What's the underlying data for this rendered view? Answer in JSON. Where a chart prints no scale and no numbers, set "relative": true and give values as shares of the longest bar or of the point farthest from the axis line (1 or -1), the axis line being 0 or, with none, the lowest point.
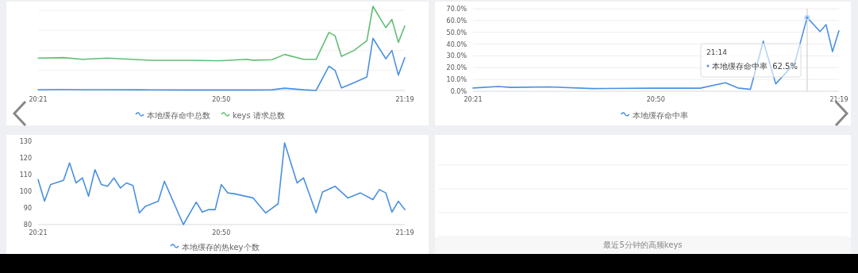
{
  "chart_data": [
    {
      "type": "line",
      "relative": true,
      "legend": "bottom",
      "grid": "y",
      "marker": "none",
      "line_style": "solid",
      "xlim": [
        20.35,
        21.317
      ],
      "xticks": [
        {
          "value": 20.35,
          "label": "20:21"
        },
        {
          "value": 20.833,
          "label": "20:50"
        },
        {
          "value": 21.317,
          "label": "21:19"
        }
      ],
      "x": [
        20.35,
        20.417,
        20.467,
        20.533,
        20.617,
        20.65,
        20.75,
        20.817,
        20.833,
        20.9,
        20.917,
        20.967,
        21.0,
        21.05,
        21.083,
        21.117,
        21.133,
        21.15,
        21.183,
        21.217,
        21.233,
        21.267,
        21.283,
        21.3,
        21.317
      ],
      "series": [
        {
          "name": "本地缓存命中总数",
          "color": "#4a90e2",
          "values": [
            0.01,
            0.012,
            0.01,
            0.01,
            0.008,
            0.007,
            0.006,
            0.006,
            0.006,
            0.006,
            0.006,
            0.008,
            0.027,
            0.008,
            0,
            0.288,
            0.24,
            0.03,
            0.093,
            0.16,
            0.62,
            0.377,
            0.475,
            0.183,
            0.39
          ]
        },
        {
          "name": "keys 请求总数",
          "color": "#62bd74",
          "values": [
            0.385,
            0.39,
            0.37,
            0.385,
            0.366,
            0.358,
            0.358,
            0.354,
            0.354,
            0.37,
            0.36,
            0.366,
            0.428,
            0.37,
            0.37,
            0.69,
            0.65,
            0.405,
            0.475,
            0.59,
            1.0,
            0.747,
            0.844,
            0.572,
            0.767
          ]
        }
      ]
    },
    {
      "type": "line",
      "legend": "bottom",
      "grid": "y",
      "marker": "none",
      "line_style": "solid",
      "xlim": [
        20.35,
        21.317
      ],
      "xticks": [
        {
          "value": 20.35,
          "label": "20:21"
        },
        {
          "value": 20.833,
          "label": "20:50"
        },
        {
          "value": 21.317,
          "label": "21:19"
        }
      ],
      "ylim": [
        0,
        70
      ],
      "yticks": [
        {
          "value": 0,
          "label": "0.0%"
        },
        {
          "value": 10,
          "label": "10.0%"
        },
        {
          "value": 20,
          "label": "20.0%"
        },
        {
          "value": 30,
          "label": "30.0%"
        },
        {
          "value": 40,
          "label": "40.0%"
        },
        {
          "value": 50,
          "label": "50.0%"
        },
        {
          "value": 60,
          "label": "60.0%"
        },
        {
          "value": 70,
          "label": "70.0%"
        }
      ],
      "x": [
        20.35,
        20.417,
        20.45,
        20.55,
        20.667,
        20.817,
        20.95,
        21.017,
        21.05,
        21.083,
        21.117,
        21.15,
        21.2,
        21.233,
        21.267,
        21.283,
        21.3,
        21.317
      ],
      "series": [
        {
          "name": "本地缓存命中率",
          "color": "#4a90e2",
          "values": [
            2.8,
            4.0,
            3.3,
            3.7,
            2.3,
            2.6,
            2.6,
            7.2,
            2.8,
            1.6,
            42.5,
            6.3,
            23.8,
            62.5,
            50.6,
            56.5,
            33.6,
            51.3
          ]
        }
      ],
      "ref_lines": [
        {
          "axis": "x",
          "value": 21.233,
          "color": "#c8c8c8"
        }
      ],
      "annotations": [
        "21:14",
        "本地缓存命中率",
        "62.5%"
      ]
    },
    {
      "type": "line",
      "legend": "bottom",
      "grid": false,
      "marker": "none",
      "line_style": "solid",
      "xlim": [
        20.35,
        21.317
      ],
      "xticks": [
        {
          "value": 20.35,
          "label": "20:21"
        },
        {
          "value": 20.833,
          "label": "20:50"
        },
        {
          "value": 21.317,
          "label": "21:19"
        }
      ],
      "ylim": [
        80,
        130
      ],
      "yticks": [
        80,
        90,
        100,
        110,
        120,
        130
      ],
      "x": [
        20.35,
        20.367,
        20.383,
        20.417,
        20.433,
        20.45,
        20.467,
        20.483,
        20.5,
        20.517,
        20.533,
        20.55,
        20.567,
        20.583,
        20.6,
        20.617,
        20.633,
        20.667,
        20.683,
        20.733,
        20.767,
        20.783,
        20.8,
        20.817,
        20.833,
        20.85,
        20.867,
        20.917,
        20.95,
        20.983,
        21.0,
        21.033,
        21.05,
        21.083,
        21.1,
        21.133,
        21.167,
        21.2,
        21.233,
        21.25,
        21.267,
        21.283,
        21.3,
        21.317
      ],
      "series": [
        {
          "name": "本地缓存的热key个数",
          "color": "#4a90e2",
          "values": [
            107,
            94,
            104,
            106.5,
            117,
            105,
            108,
            97,
            113,
            104,
            103,
            108,
            102,
            105,
            103.5,
            87,
            91,
            94,
            106,
            80,
            93.5,
            87.5,
            89,
            89,
            104,
            99,
            98.5,
            96,
            87,
            92.5,
            129,
            105,
            108,
            87,
            99.5,
            103,
            96,
            99,
            95,
            101,
            99,
            87.5,
            94,
            89
          ]
        }
      ]
    },
    {
      "type": "other",
      "annotations": [
        "最近5分钟的高频keys"
      ]
    }
  ]
}
